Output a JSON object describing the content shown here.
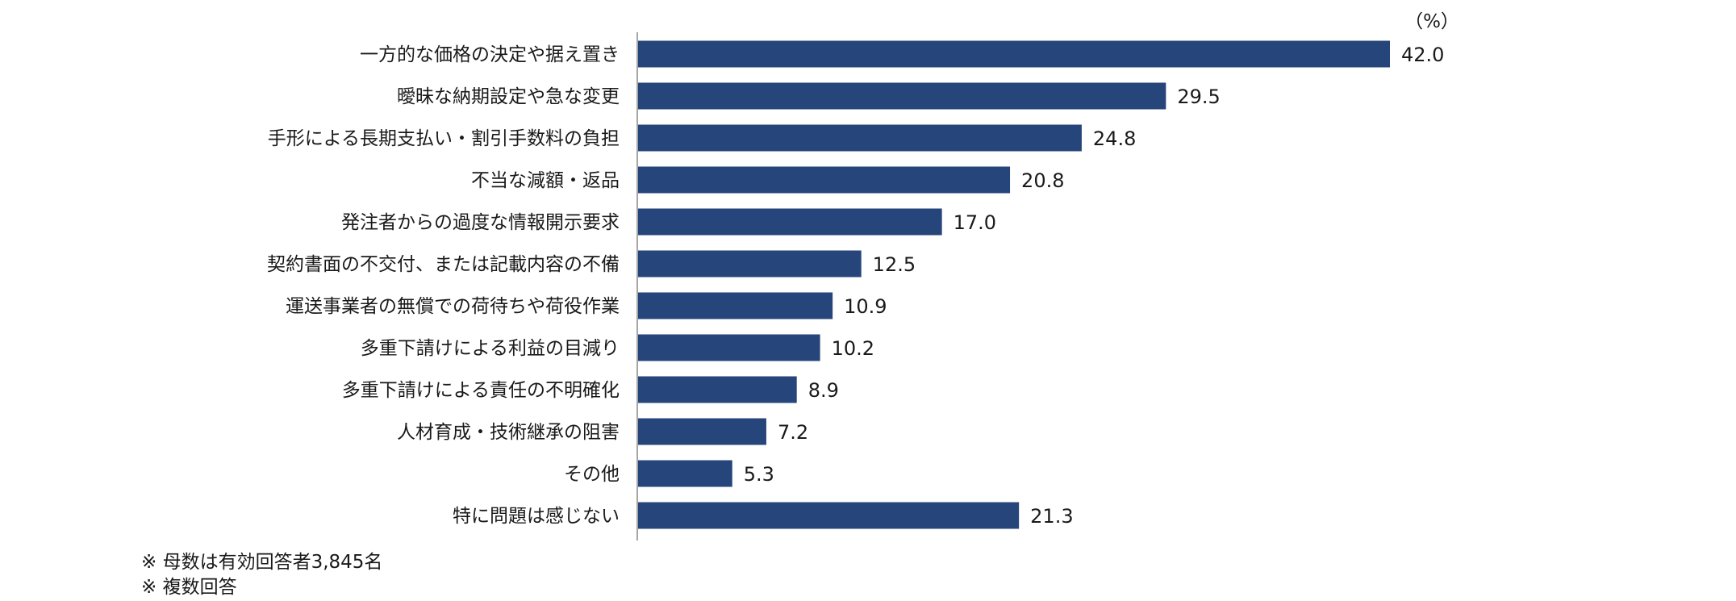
{
  "chart_data": {
    "type": "bar",
    "orientation": "horizontal",
    "unit_label": "（%）",
    "categories": [
      "一方的な価格の決定や据え置き",
      "曖昧な納期設定や急な変更",
      "手形による長期支払い・割引手数料の負担",
      "不当な減額・返品",
      "発注者からの過度な情報開示要求",
      "契約書面の不交付、または記載内容の不備",
      "運送事業者の無償での荷待ちや荷役作業",
      "多重下請けによる利益の目減り",
      "多重下請けによる責任の不明確化",
      "人材育成・技術継承の阻害",
      "その他",
      "特に問題は感じない"
    ],
    "values": [
      42.0,
      29.5,
      24.8,
      20.8,
      17.0,
      12.5,
      10.9,
      10.2,
      8.9,
      7.2,
      5.3,
      21.3
    ],
    "value_labels": [
      "42.0",
      "29.5",
      "24.8",
      "20.8",
      "17.0",
      "12.5",
      "10.9",
      "10.2",
      "8.9",
      "7.2",
      "5.3",
      "21.3"
    ],
    "xlim": [
      0,
      42.0
    ],
    "grid": false,
    "colors": {
      "bar": "#26457a",
      "axis": "#a6a6a6",
      "text": "#1a1a1a"
    }
  },
  "notes": [
    "※ 母数は有効回答者3,845名",
    "※ 複数回答"
  ]
}
